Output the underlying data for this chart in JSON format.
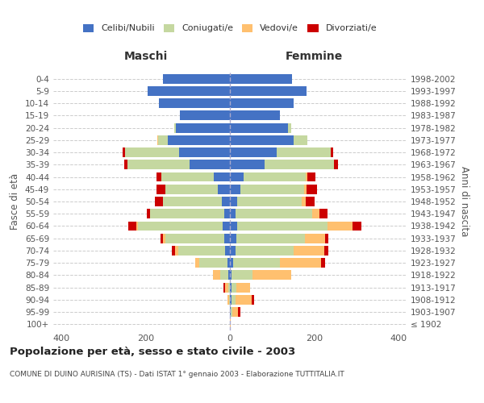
{
  "age_groups": [
    "100+",
    "95-99",
    "90-94",
    "85-89",
    "80-84",
    "75-79",
    "70-74",
    "65-69",
    "60-64",
    "55-59",
    "50-54",
    "45-49",
    "40-44",
    "35-39",
    "30-34",
    "25-29",
    "20-24",
    "15-19",
    "10-14",
    "5-9",
    "0-4"
  ],
  "birth_years": [
    "≤ 1902",
    "1903-1907",
    "1908-1912",
    "1913-1917",
    "1918-1922",
    "1923-1927",
    "1928-1932",
    "1933-1937",
    "1938-1942",
    "1943-1947",
    "1948-1952",
    "1953-1957",
    "1958-1962",
    "1963-1967",
    "1968-1972",
    "1973-1977",
    "1978-1982",
    "1983-1987",
    "1988-1992",
    "1993-1997",
    "1998-2002"
  ],
  "maschi_celibe": [
    0,
    0,
    0,
    0,
    3,
    5,
    12,
    14,
    18,
    14,
    20,
    28,
    38,
    95,
    120,
    148,
    128,
    118,
    168,
    195,
    160
  ],
  "maschi_coniugato": [
    0,
    0,
    2,
    3,
    20,
    68,
    110,
    140,
    200,
    175,
    140,
    125,
    125,
    148,
    130,
    22,
    5,
    0,
    0,
    0,
    0
  ],
  "maschi_vedovo": [
    0,
    0,
    3,
    8,
    18,
    10,
    8,
    5,
    4,
    0,
    0,
    0,
    0,
    0,
    0,
    2,
    0,
    0,
    0,
    0,
    0
  ],
  "maschi_divorziato": [
    0,
    0,
    0,
    5,
    0,
    0,
    8,
    5,
    20,
    8,
    18,
    22,
    12,
    8,
    5,
    0,
    0,
    0,
    0,
    0,
    0
  ],
  "femmine_celibe": [
    0,
    2,
    4,
    4,
    4,
    8,
    14,
    16,
    18,
    14,
    18,
    25,
    32,
    82,
    112,
    152,
    138,
    118,
    152,
    182,
    148
  ],
  "femmine_coniugato": [
    0,
    4,
    10,
    12,
    50,
    110,
    138,
    162,
    215,
    182,
    152,
    152,
    148,
    165,
    128,
    32,
    8,
    0,
    0,
    0,
    0
  ],
  "femmine_vedovo": [
    2,
    14,
    38,
    32,
    92,
    98,
    72,
    48,
    58,
    16,
    11,
    5,
    5,
    0,
    0,
    0,
    0,
    0,
    0,
    0,
    0
  ],
  "femmine_divorziato": [
    0,
    5,
    5,
    0,
    0,
    10,
    10,
    8,
    22,
    20,
    20,
    26,
    18,
    10,
    5,
    0,
    0,
    0,
    0,
    0,
    0
  ],
  "colors": {
    "celibe": "#4472c4",
    "coniugato": "#c5d8a0",
    "vedovo": "#ffc06f",
    "divorziato": "#cc0000"
  },
  "title": "Popolazione per età, sesso e stato civile - 2003",
  "subtitle": "COMUNE DI DUINO AURISINA (TS) - Dati ISTAT 1° gennaio 2003 - Elaborazione TUTTITALIA.IT",
  "xlabel_left": "Maschi",
  "xlabel_right": "Femmine",
  "ylabel_left": "Fasce di età",
  "ylabel_right": "Anni di nascita",
  "xlim": 420,
  "background_color": "#ffffff",
  "grid_color": "#cccccc"
}
